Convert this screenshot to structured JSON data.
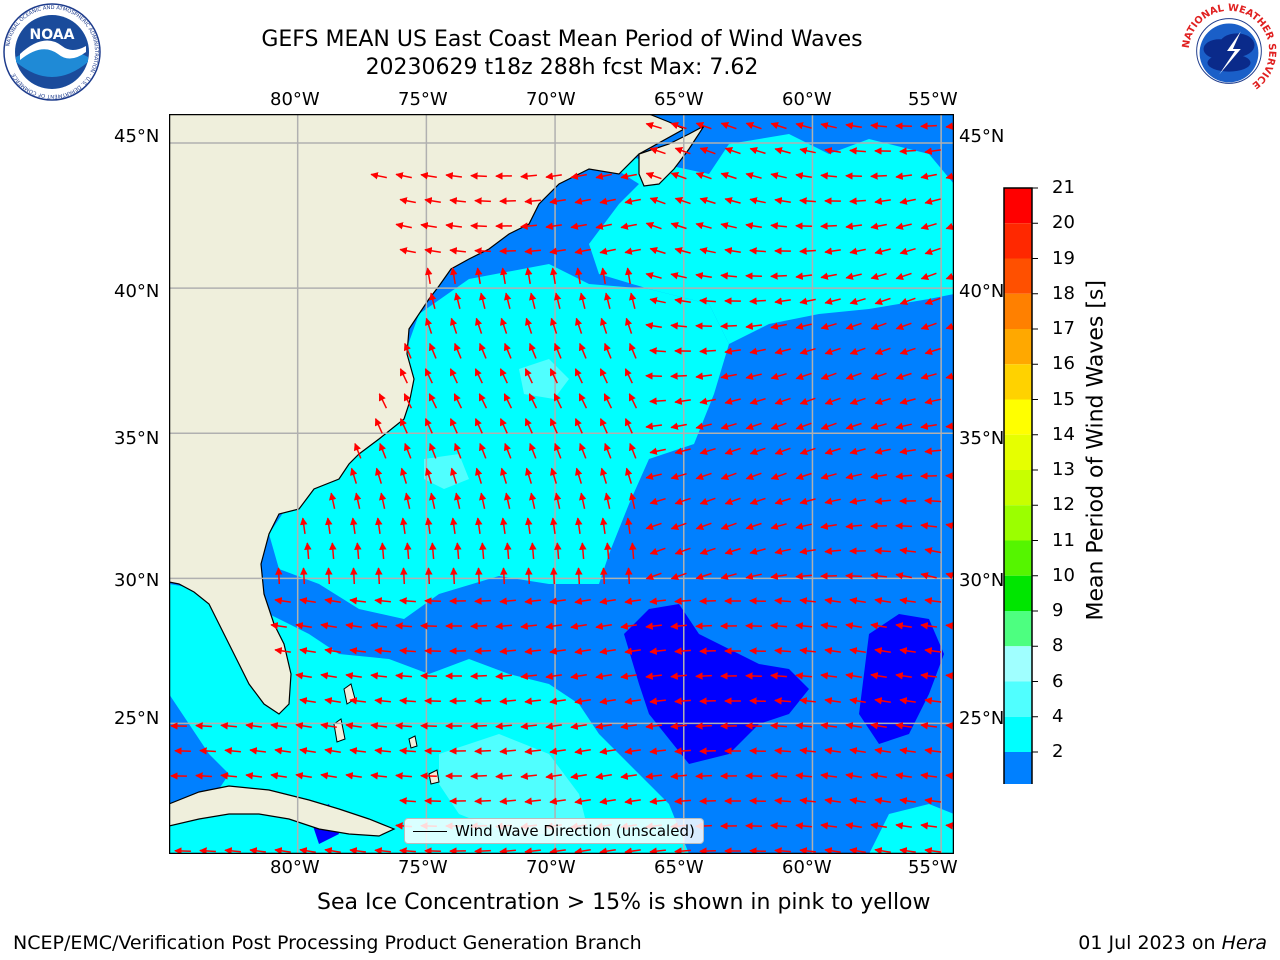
{
  "title": {
    "line1": "GEFS MEAN US East Coast Mean Period of Wind Waves",
    "line2": "20230629 t18z 288h fcst   Max: 7.62"
  },
  "map": {
    "lon_ticks": [
      "80°W",
      "75°W",
      "70°W",
      "65°W",
      "60°W",
      "55°W"
    ],
    "lat_ticks": [
      "45°N",
      "40°N",
      "35°N",
      "30°N",
      "25°N"
    ],
    "lon_range": [
      -85,
      -54.5
    ],
    "lat_range": [
      20.5,
      46
    ],
    "arrow_color": "#ff0000",
    "land_color": "#efefdc",
    "grid": true
  },
  "legend": {
    "label": "Wind Wave Direction (unscaled)"
  },
  "colorbar": {
    "label": "Mean Period of Wind Waves [s]",
    "ticks": [
      "21",
      "20",
      "19",
      "18",
      "17",
      "16",
      "15",
      "14",
      "13",
      "12",
      "11",
      "10",
      "9",
      "8",
      "6",
      "4",
      "2"
    ],
    "colors": [
      "#ff0000",
      "#ff2800",
      "#ff5000",
      "#ff8000",
      "#ffa800",
      "#ffd200",
      "#ffff00",
      "#e6ff00",
      "#c8ff00",
      "#9bff00",
      "#55f500",
      "#00e600",
      "#4dff80",
      "#a0ffff",
      "#50ffff",
      "#00ffff",
      "#0080ff",
      "#0000ff"
    ]
  },
  "note": "Sea Ice Concentration > 15% is shown in pink to yellow",
  "footer": {
    "left": "NCEP/EMC/Verification Post Processing Product Generation Branch",
    "right_date": "01 Jul 2023 on ",
    "right_machine": "Hera"
  },
  "logos": {
    "noaa_text": "NOAA",
    "noaa_ring": "NATIONAL OCEANIC AND ATMOSPHERIC ADMINISTRATION · U.S. DEPARTMENT OF COMMERCE",
    "nws_ring": "NATIONAL WEATHER SERVICE"
  }
}
